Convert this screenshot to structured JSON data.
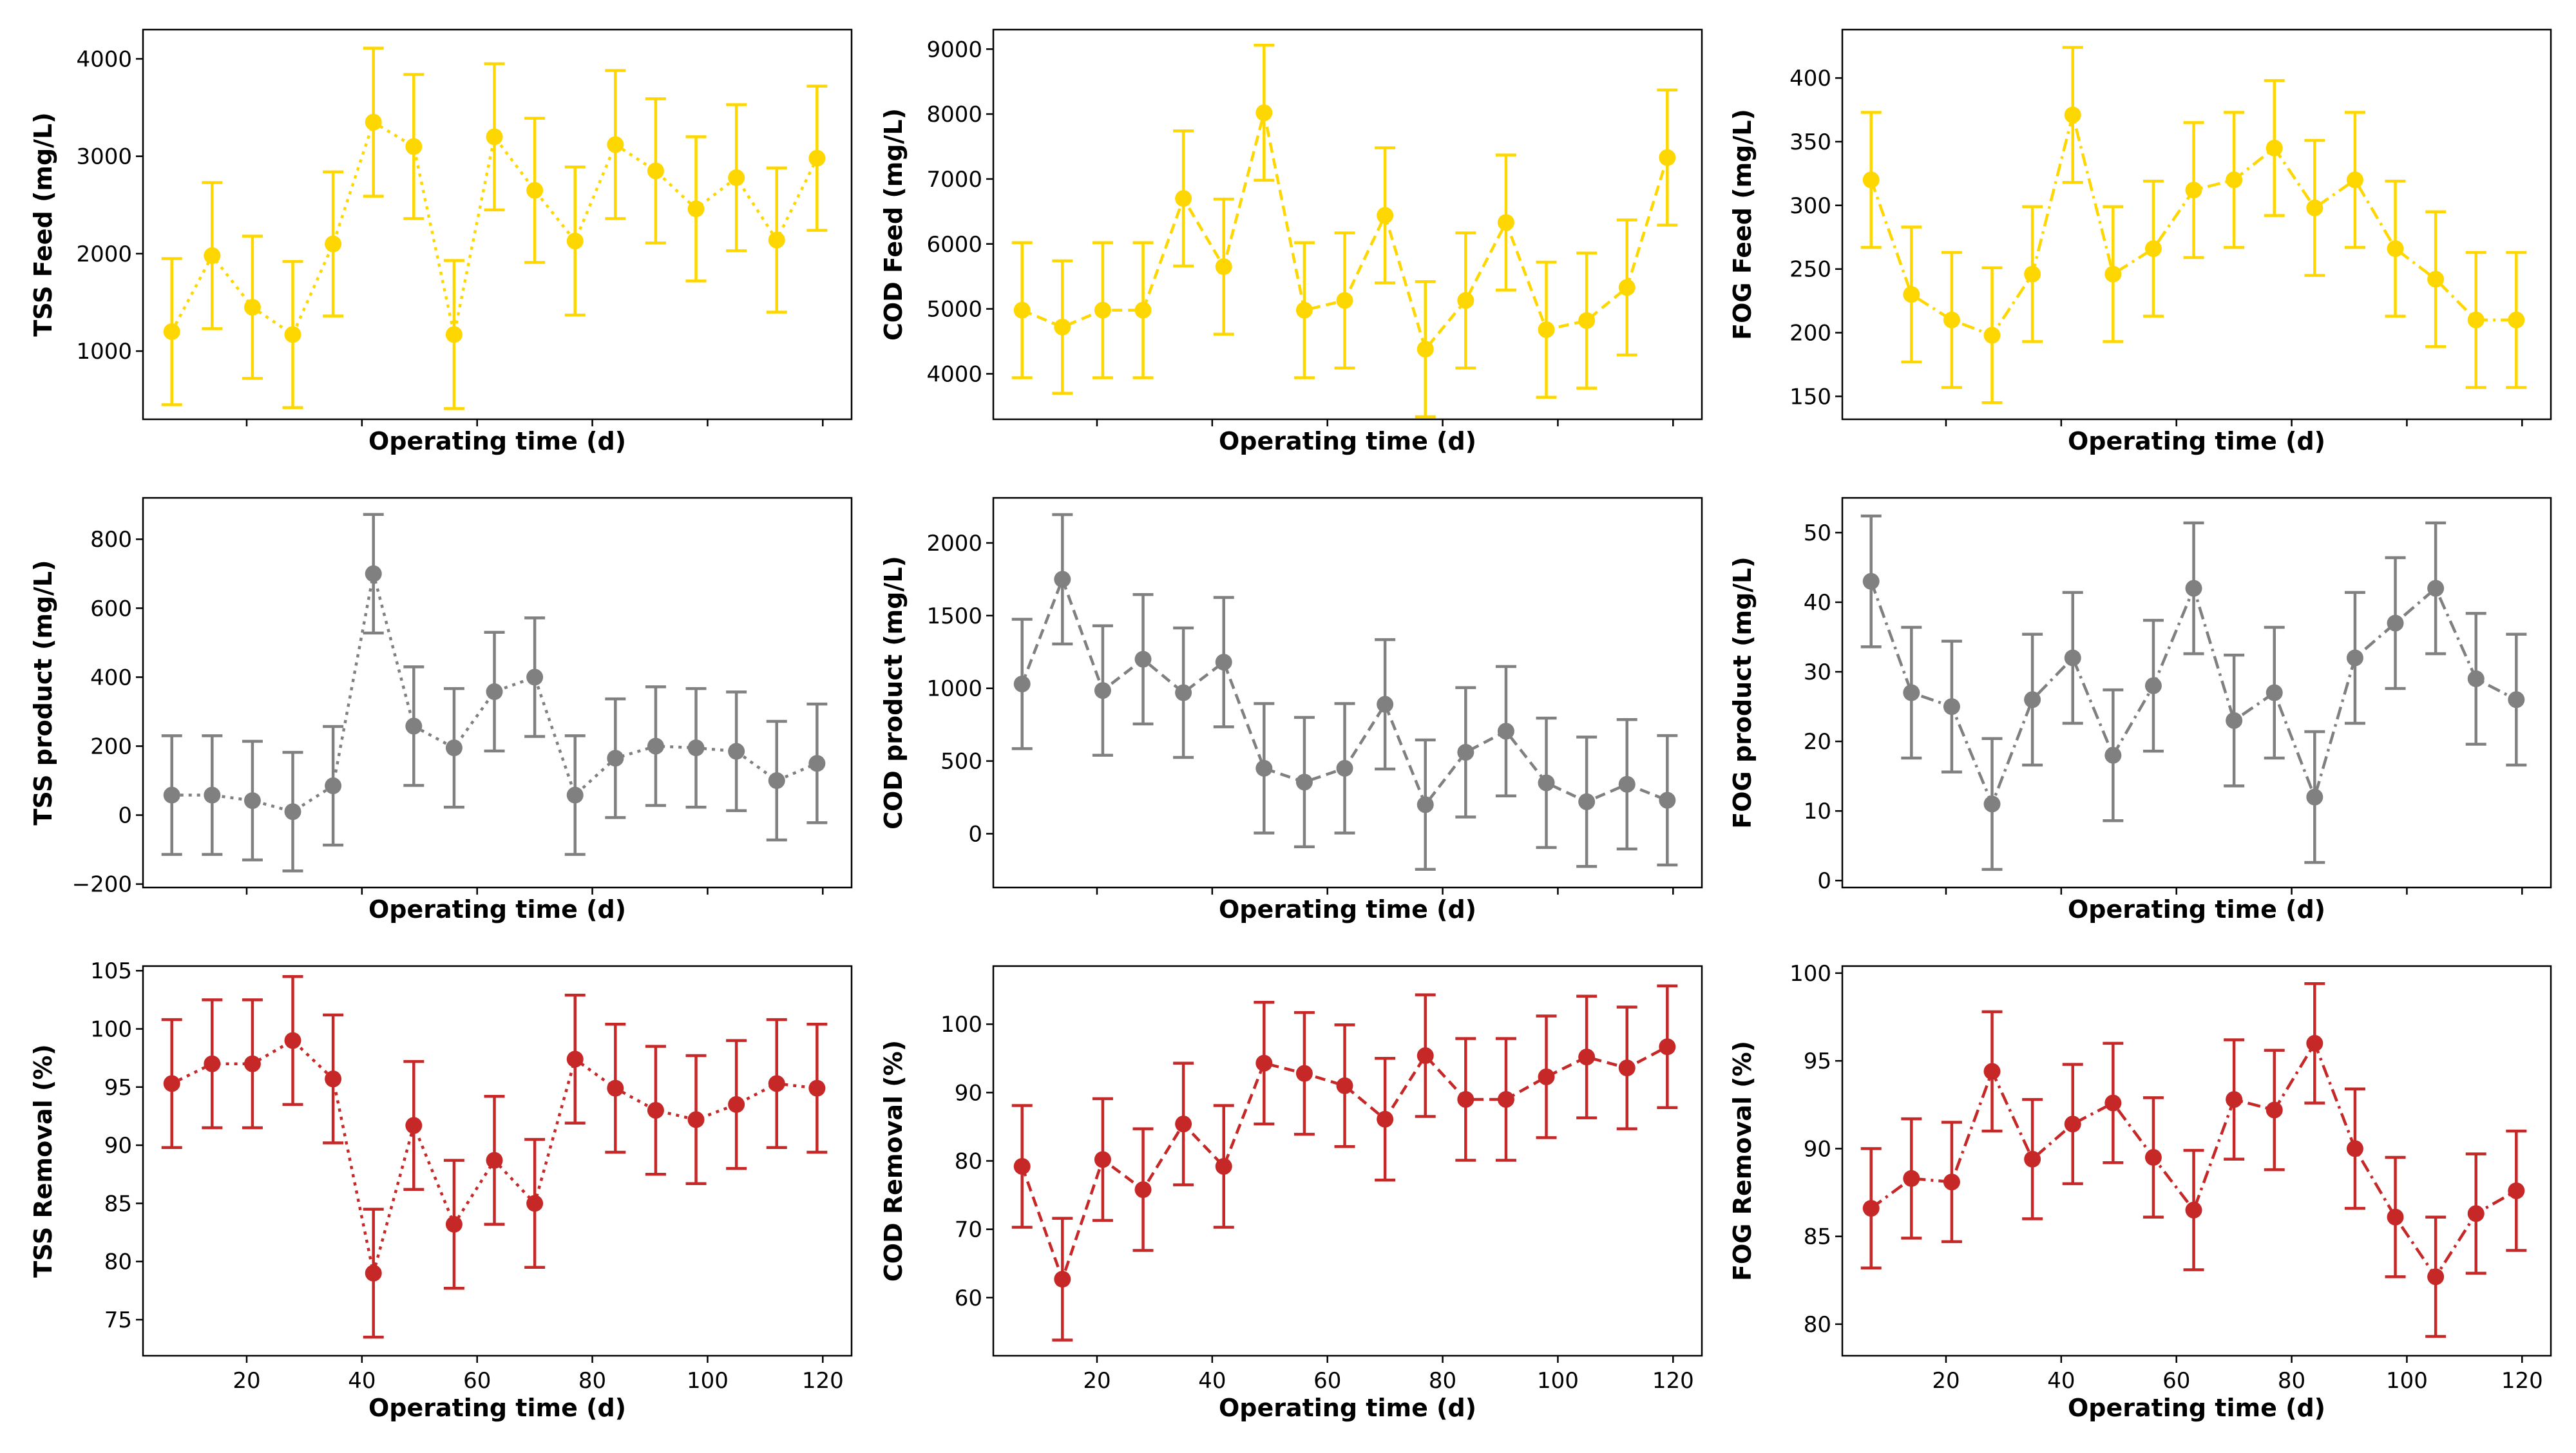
{
  "colors": {
    "yellow": "#ffd700",
    "gray": "#808080",
    "red": "#c62828"
  },
  "chart_data": [
    {
      "type": "line",
      "title": "",
      "xlabel": "Operating time (d)",
      "ylabel": "TSS Feed (mg/L)",
      "color": "yellow",
      "linestyle": "dotted",
      "show_x_ticklabels": false,
      "xlim": [
        2,
        125
      ],
      "ylim": [
        300,
        4300
      ],
      "xticks": [
        20,
        40,
        60,
        80,
        100,
        120
      ],
      "xticklabels": [
        "20",
        "40",
        "60",
        "80",
        "100",
        "120"
      ],
      "yticks": [
        1000,
        2000,
        3000,
        4000
      ],
      "yticklabels": [
        "1000",
        "2000",
        "3000",
        "4000"
      ],
      "x": [
        7,
        14,
        21,
        28,
        35,
        42,
        49,
        56,
        63,
        70,
        77,
        84,
        91,
        98,
        105,
        112,
        119
      ],
      "y": [
        1200,
        1980,
        1450,
        1170,
        2100,
        3350,
        3100,
        1170,
        3200,
        2650,
        2130,
        3120,
        2850,
        2460,
        2780,
        2140,
        2980
      ],
      "err": [
        750,
        750,
        730,
        750,
        740,
        760,
        740,
        760,
        750,
        740,
        760,
        760,
        740,
        740,
        750,
        740,
        740
      ]
    },
    {
      "type": "line",
      "title": "",
      "xlabel": "Operating time (d)",
      "ylabel": "COD Feed (mg/L)",
      "color": "yellow",
      "linestyle": "dashed",
      "show_x_ticklabels": false,
      "xlim": [
        2,
        125
      ],
      "ylim": [
        3300,
        9300
      ],
      "xticks": [
        20,
        40,
        60,
        80,
        100,
        120
      ],
      "xticklabels": [
        "20",
        "40",
        "60",
        "80",
        "100",
        "120"
      ],
      "yticks": [
        4000,
        5000,
        6000,
        7000,
        8000,
        9000
      ],
      "yticklabels": [
        "4000",
        "5000",
        "6000",
        "7000",
        "8000",
        "9000"
      ],
      "x": [
        7,
        14,
        21,
        28,
        35,
        42,
        49,
        56,
        63,
        70,
        77,
        84,
        91,
        98,
        105,
        112,
        119
      ],
      "y": [
        4980,
        4720,
        4980,
        4980,
        6700,
        5650,
        8020,
        4980,
        5130,
        6440,
        4380,
        5130,
        6330,
        4680,
        4820,
        5330,
        7330
      ],
      "err": [
        1040,
        1020,
        1040,
        1040,
        1040,
        1040,
        1040,
        1040,
        1040,
        1040,
        1040,
        1040,
        1040,
        1040,
        1040,
        1040,
        1040
      ]
    },
    {
      "type": "line",
      "title": "",
      "xlabel": "Operating time (d)",
      "ylabel": "FOG Feed (mg/L)",
      "color": "yellow",
      "linestyle": "dashdot",
      "show_x_ticklabels": false,
      "xlim": [
        2,
        125
      ],
      "ylim": [
        132,
        438
      ],
      "xticks": [
        20,
        40,
        60,
        80,
        100,
        120
      ],
      "xticklabels": [
        "20",
        "40",
        "60",
        "80",
        "100",
        "120"
      ],
      "yticks": [
        150,
        200,
        250,
        300,
        350,
        400
      ],
      "yticklabels": [
        "150",
        "200",
        "250",
        "300",
        "350",
        "400"
      ],
      "x": [
        7,
        14,
        21,
        28,
        35,
        42,
        49,
        56,
        63,
        70,
        77,
        84,
        91,
        98,
        105,
        112,
        119
      ],
      "y": [
        320,
        230,
        210,
        198,
        246,
        371,
        246,
        266,
        312,
        320,
        345,
        298,
        320,
        266,
        242,
        210,
        210
      ],
      "err": [
        53,
        53,
        53,
        53,
        53,
        53,
        53,
        53,
        53,
        53,
        53,
        53,
        53,
        53,
        53,
        53,
        53
      ]
    },
    {
      "type": "line",
      "title": "",
      "xlabel": "Operating time (d)",
      "ylabel": "TSS product (mg/L)",
      "color": "gray",
      "linestyle": "dotted",
      "show_x_ticklabels": false,
      "xlim": [
        2,
        125
      ],
      "ylim": [
        -210,
        920
      ],
      "xticks": [
        20,
        40,
        60,
        80,
        100,
        120
      ],
      "xticklabels": [
        "20",
        "40",
        "60",
        "80",
        "100",
        "120"
      ],
      "yticks": [
        -200,
        0,
        200,
        400,
        600,
        800
      ],
      "yticklabels": [
        "−200",
        "0",
        "200",
        "400",
        "600",
        "800"
      ],
      "x": [
        7,
        14,
        21,
        28,
        35,
        42,
        49,
        56,
        63,
        70,
        77,
        84,
        91,
        98,
        105,
        112,
        119
      ],
      "y": [
        58,
        58,
        42,
        10,
        85,
        700,
        258,
        195,
        358,
        400,
        58,
        165,
        200,
        195,
        185,
        100,
        150
      ],
      "err": [
        172,
        172,
        172,
        172,
        172,
        172,
        172,
        172,
        172,
        172,
        172,
        172,
        172,
        172,
        172,
        172,
        172
      ]
    },
    {
      "type": "line",
      "title": "",
      "xlabel": "Operating time (d)",
      "ylabel": "COD product (mg/L)",
      "color": "gray",
      "linestyle": "dashed",
      "show_x_ticklabels": false,
      "xlim": [
        2,
        125
      ],
      "ylim": [
        -370,
        2310
      ],
      "xticks": [
        20,
        40,
        60,
        80,
        100,
        120
      ],
      "xticklabels": [
        "20",
        "40",
        "60",
        "80",
        "100",
        "120"
      ],
      "yticks": [
        0,
        500,
        1000,
        1500,
        2000
      ],
      "yticklabels": [
        "0",
        "500",
        "1000",
        "1500",
        "2000"
      ],
      "x": [
        7,
        14,
        21,
        28,
        35,
        42,
        49,
        56,
        63,
        70,
        77,
        84,
        91,
        98,
        105,
        112,
        119
      ],
      "y": [
        1030,
        1750,
        985,
        1200,
        970,
        1180,
        450,
        355,
        450,
        890,
        200,
        560,
        705,
        350,
        220,
        340,
        230
      ],
      "err": [
        445,
        445,
        445,
        445,
        445,
        445,
        445,
        445,
        445,
        445,
        445,
        445,
        445,
        445,
        445,
        445,
        445
      ]
    },
    {
      "type": "line",
      "title": "",
      "xlabel": "Operating time (d)",
      "ylabel": "FOG product (mg/L)",
      "color": "gray",
      "linestyle": "dashdot",
      "show_x_ticklabels": false,
      "xlim": [
        2,
        125
      ],
      "ylim": [
        -1,
        55
      ],
      "xticks": [
        20,
        40,
        60,
        80,
        100,
        120
      ],
      "xticklabels": [
        "20",
        "40",
        "60",
        "80",
        "100",
        "120"
      ],
      "yticks": [
        0,
        10,
        20,
        30,
        40,
        50
      ],
      "yticklabels": [
        "0",
        "10",
        "20",
        "30",
        "40",
        "50"
      ],
      "x": [
        7,
        14,
        21,
        28,
        35,
        42,
        49,
        56,
        63,
        70,
        77,
        84,
        91,
        98,
        105,
        112,
        119
      ],
      "y": [
        43,
        27,
        25,
        11,
        26,
        32,
        18,
        28,
        42,
        23,
        27,
        12,
        32,
        37,
        42,
        29,
        26
      ],
      "err": [
        9.4,
        9.4,
        9.4,
        9.4,
        9.4,
        9.4,
        9.4,
        9.4,
        9.4,
        9.4,
        9.4,
        9.4,
        9.4,
        9.4,
        9.4,
        9.4,
        9.4
      ]
    },
    {
      "type": "line",
      "title": "",
      "xlabel": "Operating time (d)",
      "ylabel": "TSS Removal (%)",
      "color": "red",
      "linestyle": "dotted",
      "show_x_ticklabels": true,
      "xlim": [
        2,
        125
      ],
      "ylim": [
        71.9,
        105.4
      ],
      "xticks": [
        20,
        40,
        60,
        80,
        100,
        120
      ],
      "xticklabels": [
        "20",
        "40",
        "60",
        "80",
        "100",
        "120"
      ],
      "yticks": [
        75,
        80,
        85,
        90,
        95,
        100,
        105
      ],
      "yticklabels": [
        "75",
        "80",
        "85",
        "90",
        "95",
        "100",
        "105"
      ],
      "x": [
        7,
        14,
        21,
        28,
        35,
        42,
        49,
        56,
        63,
        70,
        77,
        84,
        91,
        98,
        105,
        112,
        119
      ],
      "y": [
        95.3,
        97.0,
        97.0,
        99.0,
        95.7,
        79.0,
        91.7,
        83.2,
        88.7,
        85.0,
        97.4,
        94.9,
        93.0,
        92.2,
        93.5,
        95.3,
        94.9
      ],
      "err": [
        5.5,
        5.5,
        5.5,
        5.5,
        5.5,
        5.5,
        5.5,
        5.5,
        5.5,
        5.5,
        5.5,
        5.5,
        5.5,
        5.5,
        5.5,
        5.5,
        5.5
      ]
    },
    {
      "type": "line",
      "title": "",
      "xlabel": "Operating time (d)",
      "ylabel": "COD Removal (%)",
      "color": "red",
      "linestyle": "dashed",
      "show_x_ticklabels": true,
      "xlim": [
        2,
        125
      ],
      "ylim": [
        51.5,
        108.5
      ],
      "xticks": [
        20,
        40,
        60,
        80,
        100,
        120
      ],
      "xticklabels": [
        "20",
        "40",
        "60",
        "80",
        "100",
        "120"
      ],
      "yticks": [
        60,
        70,
        80,
        90,
        100
      ],
      "yticklabels": [
        "60",
        "70",
        "80",
        "90",
        "100"
      ],
      "x": [
        7,
        14,
        21,
        28,
        35,
        42,
        49,
        56,
        63,
        70,
        77,
        84,
        91,
        98,
        105,
        112,
        119
      ],
      "y": [
        79.2,
        62.7,
        80.2,
        75.8,
        85.4,
        79.2,
        94.3,
        92.8,
        91.0,
        86.1,
        95.4,
        89.0,
        89.0,
        92.3,
        95.2,
        93.6,
        96.7
      ],
      "err": [
        8.9,
        8.9,
        8.9,
        8.9,
        8.9,
        8.9,
        8.9,
        8.9,
        8.9,
        8.9,
        8.9,
        8.9,
        8.9,
        8.9,
        8.9,
        8.9,
        8.9
      ]
    },
    {
      "type": "line",
      "title": "",
      "xlabel": "Operating time (d)",
      "ylabel": "FOG Removal (%)",
      "color": "red",
      "linestyle": "dashdot",
      "show_x_ticklabels": true,
      "xlim": [
        2,
        125
      ],
      "ylim": [
        78.2,
        100.4
      ],
      "xticks": [
        20,
        40,
        60,
        80,
        100,
        120
      ],
      "xticklabels": [
        "20",
        "40",
        "60",
        "80",
        "100",
        "120"
      ],
      "yticks": [
        80,
        85,
        90,
        95,
        100
      ],
      "yticklabels": [
        "80",
        "85",
        "90",
        "95",
        "100"
      ],
      "x": [
        7,
        14,
        21,
        28,
        35,
        42,
        49,
        56,
        63,
        70,
        77,
        84,
        91,
        98,
        105,
        112,
        119
      ],
      "y": [
        86.6,
        88.3,
        88.1,
        94.4,
        89.4,
        91.4,
        92.6,
        89.5,
        86.5,
        92.8,
        92.2,
        96.0,
        90.0,
        86.1,
        82.7,
        86.3,
        87.6
      ],
      "err": [
        3.4,
        3.4,
        3.4,
        3.4,
        3.4,
        3.4,
        3.4,
        3.4,
        3.4,
        3.4,
        3.4,
        3.4,
        3.4,
        3.4,
        3.4,
        3.4,
        3.4
      ]
    }
  ]
}
